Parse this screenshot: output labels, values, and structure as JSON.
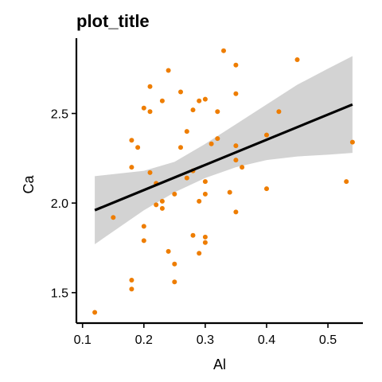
{
  "chart_data": {
    "type": "scatter",
    "title": "plot_title",
    "xlabel": "Al",
    "ylabel": "Ca",
    "xlim": [
      0.09,
      0.557
    ],
    "ylim": [
      1.33,
      2.92
    ],
    "xticks": [
      0.1,
      0.2,
      0.3,
      0.4,
      0.5
    ],
    "yticks": [
      1.5,
      2.0,
      2.5
    ],
    "xtick_labels": [
      "0.1",
      "0.2",
      "0.3",
      "0.4",
      "0.5"
    ],
    "ytick_labels": [
      "1.5",
      "2.0",
      "2.5"
    ],
    "grid": false,
    "point_color": "#ee7d00",
    "line_color": "#000000",
    "band_color": "#d3d3d3",
    "points": [
      [
        0.12,
        1.39
      ],
      [
        0.15,
        1.92
      ],
      [
        0.18,
        2.35
      ],
      [
        0.19,
        2.31
      ],
      [
        0.18,
        2.2
      ],
      [
        0.18,
        1.57
      ],
      [
        0.18,
        1.52
      ],
      [
        0.2,
        1.87
      ],
      [
        0.2,
        1.79
      ],
      [
        0.2,
        2.53
      ],
      [
        0.21,
        2.51
      ],
      [
        0.21,
        2.65
      ],
      [
        0.21,
        2.17
      ],
      [
        0.22,
        1.99
      ],
      [
        0.22,
        2.11
      ],
      [
        0.23,
        1.97
      ],
      [
        0.23,
        2.01
      ],
      [
        0.23,
        2.57
      ],
      [
        0.24,
        2.74
      ],
      [
        0.24,
        1.73
      ],
      [
        0.25,
        2.05
      ],
      [
        0.25,
        1.66
      ],
      [
        0.25,
        1.56
      ],
      [
        0.26,
        2.31
      ],
      [
        0.26,
        2.62
      ],
      [
        0.27,
        2.4
      ],
      [
        0.27,
        2.14
      ],
      [
        0.28,
        2.18
      ],
      [
        0.28,
        2.52
      ],
      [
        0.28,
        1.82
      ],
      [
        0.29,
        2.57
      ],
      [
        0.29,
        1.72
      ],
      [
        0.29,
        2.01
      ],
      [
        0.3,
        1.81
      ],
      [
        0.3,
        1.78
      ],
      [
        0.3,
        2.05
      ],
      [
        0.3,
        2.12
      ],
      [
        0.3,
        2.58
      ],
      [
        0.31,
        2.33
      ],
      [
        0.32,
        2.51
      ],
      [
        0.32,
        2.36
      ],
      [
        0.33,
        2.85
      ],
      [
        0.34,
        2.06
      ],
      [
        0.35,
        2.32
      ],
      [
        0.35,
        2.77
      ],
      [
        0.35,
        2.61
      ],
      [
        0.35,
        2.24
      ],
      [
        0.35,
        1.95
      ],
      [
        0.36,
        2.2
      ],
      [
        0.4,
        2.38
      ],
      [
        0.4,
        2.08
      ],
      [
        0.42,
        2.51
      ],
      [
        0.45,
        2.8
      ],
      [
        0.53,
        2.12
      ],
      [
        0.54,
        2.34
      ]
    ],
    "trend_line": {
      "x": [
        0.12,
        0.54
      ],
      "y": [
        1.96,
        2.55
      ]
    },
    "confidence_band": {
      "x": [
        0.12,
        0.2,
        0.25,
        0.3,
        0.35,
        0.4,
        0.45,
        0.5,
        0.54
      ],
      "lower": [
        1.77,
        1.96,
        2.06,
        2.14,
        2.2,
        2.24,
        2.26,
        2.27,
        2.28
      ],
      "upper": [
        2.15,
        2.18,
        2.23,
        2.33,
        2.44,
        2.55,
        2.66,
        2.75,
        2.82
      ]
    }
  }
}
